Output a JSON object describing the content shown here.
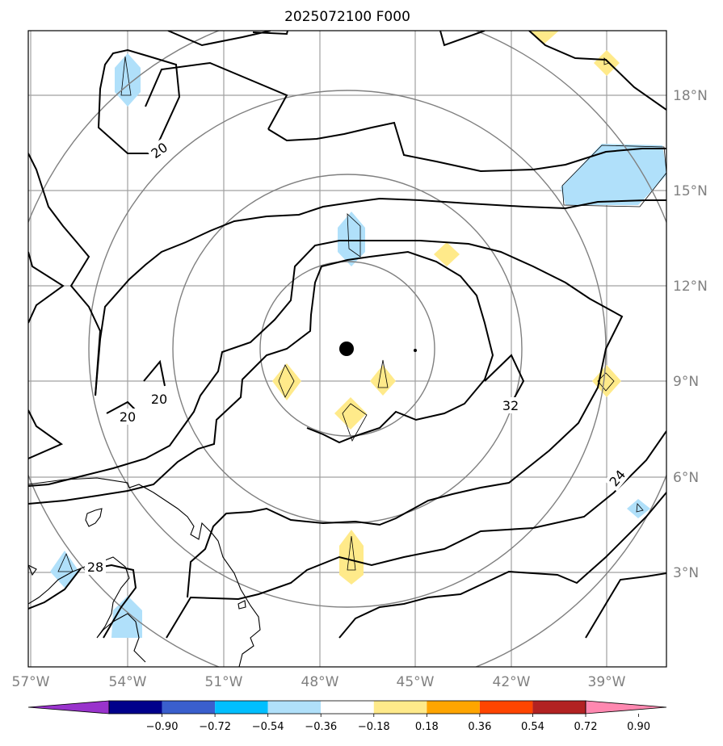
{
  "title": "2025072100 F000",
  "map": {
    "lon_range": [
      -57,
      -37.5
    ],
    "lat_range": [
      0,
      20
    ],
    "x_ticks": [
      "57°W",
      "54°W",
      "51°W",
      "48°W",
      "45°W",
      "42°W",
      "39°W"
    ],
    "y_ticks": [
      "18°N",
      "15°N",
      "12°N",
      "9°N",
      "6°N",
      "3°N"
    ],
    "grid": true,
    "storm_center": {
      "lon": -47.2,
      "lat": 10.0
    },
    "range_rings": "concentric circles around storm center",
    "contour_labels": [
      "20",
      "20",
      "20",
      "28",
      "32",
      "24"
    ]
  },
  "colorbar": {
    "labels": [
      "−0.90",
      "−0.72",
      "−0.54",
      "−0.36",
      "−0.18",
      "0.18",
      "0.36",
      "0.54",
      "0.72",
      "0.90"
    ],
    "colors": [
      "#9933cc",
      "#00008b",
      "#3a5fcd",
      "#00bfff",
      "#b0e0fa",
      "#ffffff",
      "#ffea8a",
      "#ffa500",
      "#ff4500",
      "#b22222",
      "#ff88b0"
    ],
    "extend": "both"
  },
  "colors": {
    "land_fill": "#ffffff",
    "grid": "#a0a0a0",
    "positive_fill": "#ffea8a",
    "negative_fill": "#b0e0fa",
    "contour": "#000000",
    "rings": "#808080"
  }
}
